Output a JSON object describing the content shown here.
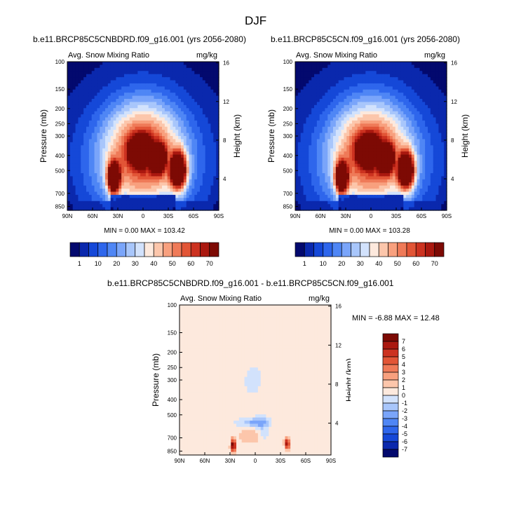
{
  "page_title": "DJF",
  "chart_data": [
    {
      "type": "heatmap",
      "title": "b.e11.BRCP85C5CNBDRD.f09_g16.001 (yrs 2056-2080)",
      "left_label": "Avg. Snow Mixing Ratio",
      "units": "mg/kg",
      "xlabel": "",
      "ylabel": "Pressure (mb)",
      "ylabel_right": "Height (km)",
      "x_ticks": [
        "90N",
        "60N",
        "30N",
        "0",
        "30S",
        "60S",
        "90S"
      ],
      "y_ticks": [
        100,
        150,
        200,
        250,
        300,
        400,
        500,
        700,
        850
      ],
      "height_ticks": [
        4,
        8,
        12,
        16
      ],
      "stats": "MIN =   0.00  MAX = 103.42",
      "colorbar_levels": [
        1,
        10,
        20,
        30,
        40,
        50,
        60,
        70
      ]
    },
    {
      "type": "heatmap",
      "title": "b.e11.BRCP85C5CN.f09_g16.001 (yrs 2056-2080)",
      "left_label": "Avg. Snow Mixing Ratio",
      "units": "mg/kg",
      "xlabel": "",
      "ylabel": "Pressure (mb)",
      "ylabel_right": "Height (km)",
      "x_ticks": [
        "90N",
        "60N",
        "30N",
        "0",
        "30S",
        "60S",
        "90S"
      ],
      "y_ticks": [
        100,
        150,
        200,
        250,
        300,
        400,
        500,
        700,
        850
      ],
      "height_ticks": [
        4,
        8,
        12,
        16
      ],
      "stats": "MIN =   0.00  MAX = 103.28",
      "colorbar_levels": [
        1,
        10,
        20,
        30,
        40,
        50,
        60,
        70
      ]
    },
    {
      "type": "heatmap",
      "title": "b.e11.BRCP85C5CNBDRD.f09_g16.001 - b.e11.BRCP85C5CN.f09_g16.001",
      "left_label": "Avg. Snow Mixing Ratio",
      "units": "mg/kg",
      "xlabel": "",
      "ylabel": "Pressure (mb)",
      "ylabel_right": "Height (km)",
      "x_ticks": [
        "90N",
        "60N",
        "30N",
        "0",
        "30S",
        "60S",
        "90S"
      ],
      "y_ticks": [
        100,
        150,
        200,
        250,
        300,
        400,
        500,
        700,
        850
      ],
      "height_ticks": [
        4,
        8,
        12,
        16
      ],
      "stats": "MIN =  -6.88  MAX =  12.48",
      "colorbar_levels": [
        "7",
        "6",
        "5",
        "4",
        "3",
        "2",
        "1",
        "0",
        "-1",
        "-2",
        "-3",
        "-4",
        "-5",
        "-6",
        "-7"
      ]
    }
  ],
  "colors": {
    "seq_palette": [
      "#03096e",
      "#0a28ad",
      "#1548d8",
      "#2e66ec",
      "#4f86f5",
      "#7aa5fa",
      "#a8c6fb",
      "#d2e2fc",
      "#fde9dd",
      "#fcc6ab",
      "#f8a07e",
      "#ef7a58",
      "#e25536",
      "#cc3220",
      "#aa180f",
      "#7d0a04"
    ],
    "diff_palette": [
      "#7d0a04",
      "#aa180f",
      "#cc3220",
      "#e25536",
      "#ef7a58",
      "#f8a07e",
      "#fcc6ab",
      "#fde9dd",
      "#d2e2fc",
      "#a8c6fb",
      "#7aa5fa",
      "#4f86f5",
      "#2e66ec",
      "#1548d8",
      "#0a28ad",
      "#03096e"
    ]
  }
}
